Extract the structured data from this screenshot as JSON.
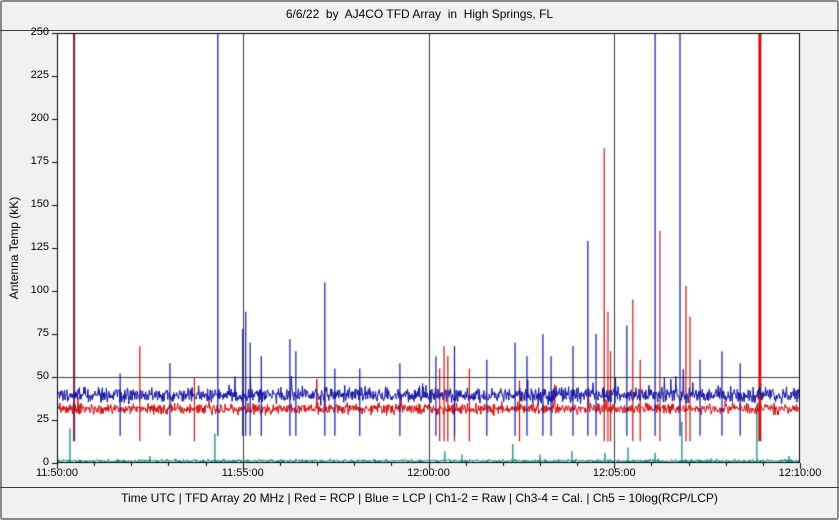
{
  "window": {
    "title": "6/6/22  by  AJ4CO TFD Array  in  High Springs, FL",
    "footer": "Time UTC | TFD Array 20 MHz | Red = RCP | Blue = LCP | Ch1-2 = Raw | Ch3-4 = Cal. | Ch5 = 10log(RCP/LCP)"
  },
  "chart_data": {
    "type": "line",
    "title": "6/6/22  by  AJ4CO TFD Array  in  High Springs, FL",
    "xlabel": "Time UTC",
    "ylabel": "Antenna Temp (kK)",
    "ylim": [
      0,
      250
    ],
    "y_ticks": [
      0,
      25,
      50,
      75,
      100,
      125,
      150,
      175,
      200,
      225,
      250
    ],
    "x_ticks": [
      "11:50:00",
      "11:55:00",
      "12:00:00",
      "12:05:00",
      "12:10:00"
    ],
    "x_range_min": [
      0,
      20
    ],
    "x_minor_interval_min": 1,
    "grid": {
      "vertical_major": true,
      "horizontal_at": [
        50
      ]
    },
    "plot_bg": "#ffffff",
    "grid_color": "#3c3c3c",
    "series": [
      {
        "name": "Ch5 10log(RCP/LCP)",
        "color": "#008078",
        "baseline_kK": 1.2,
        "noise_kK": 0.45,
        "spike_rate": 0.004,
        "spike_max_kK": 2.5,
        "spikes": [
          [
            0.35,
            20
          ],
          [
            2.5,
            4
          ],
          [
            4.25,
            17
          ],
          [
            10.44,
            7
          ],
          [
            10.9,
            5
          ],
          [
            12.27,
            11
          ],
          [
            13.0,
            5
          ],
          [
            13.86,
            7
          ],
          [
            14.75,
            6
          ],
          [
            15.37,
            9
          ],
          [
            16.1,
            6
          ],
          [
            16.82,
            24
          ],
          [
            18.84,
            34
          ],
          [
            19.7,
            4
          ]
        ]
      },
      {
        "name": "RCP (red)",
        "color": "#cc1111",
        "baseline_kK": 31.5,
        "noise_kK": 1.5,
        "spike_rate": 0.018,
        "spike_max_kK": 14,
        "spikes": [
          [
            0.46,
            250,
            2,
            "#7d1343"
          ],
          [
            2.23,
            68
          ],
          [
            3.7,
            50
          ],
          [
            10.3,
            55
          ],
          [
            10.42,
            68
          ],
          [
            10.52,
            62
          ],
          [
            10.7,
            52
          ],
          [
            11.1,
            55
          ],
          [
            12.45,
            48
          ],
          [
            14.73,
            183
          ],
          [
            14.83,
            88
          ],
          [
            14.9,
            65
          ],
          [
            15.5,
            95
          ],
          [
            15.7,
            60
          ],
          [
            16.23,
            135,
            1,
            "#8b0000"
          ],
          [
            16.93,
            103
          ],
          [
            17.04,
            85
          ],
          [
            18.92,
            250,
            3
          ]
        ]
      },
      {
        "name": "LCP (blue)",
        "color": "#1414a0",
        "baseline_kK": 39.5,
        "noise_kK": 2.1,
        "spike_rate": 0.025,
        "spike_max_kK": 16,
        "spikes": [
          [
            1.7,
            52
          ],
          [
            3.04,
            58
          ],
          [
            4.33,
            250
          ],
          [
            5.0,
            78
          ],
          [
            5.08,
            88
          ],
          [
            5.2,
            70
          ],
          [
            5.5,
            62
          ],
          [
            6.27,
            72
          ],
          [
            6.43,
            65
          ],
          [
            7.21,
            105
          ],
          [
            7.48,
            55
          ],
          [
            8.15,
            55
          ],
          [
            9.23,
            58
          ],
          [
            10.2,
            62
          ],
          [
            10.7,
            68
          ],
          [
            11.57,
            60
          ],
          [
            12.33,
            70
          ],
          [
            12.65,
            62
          ],
          [
            13.08,
            75
          ],
          [
            13.3,
            62
          ],
          [
            13.89,
            68
          ],
          [
            14.29,
            129
          ],
          [
            14.51,
            75
          ],
          [
            15.34,
            80
          ],
          [
            16.1,
            250
          ],
          [
            16.77,
            250
          ],
          [
            17.31,
            60
          ],
          [
            17.9,
            65
          ],
          [
            18.39,
            58
          ]
        ]
      }
    ]
  }
}
